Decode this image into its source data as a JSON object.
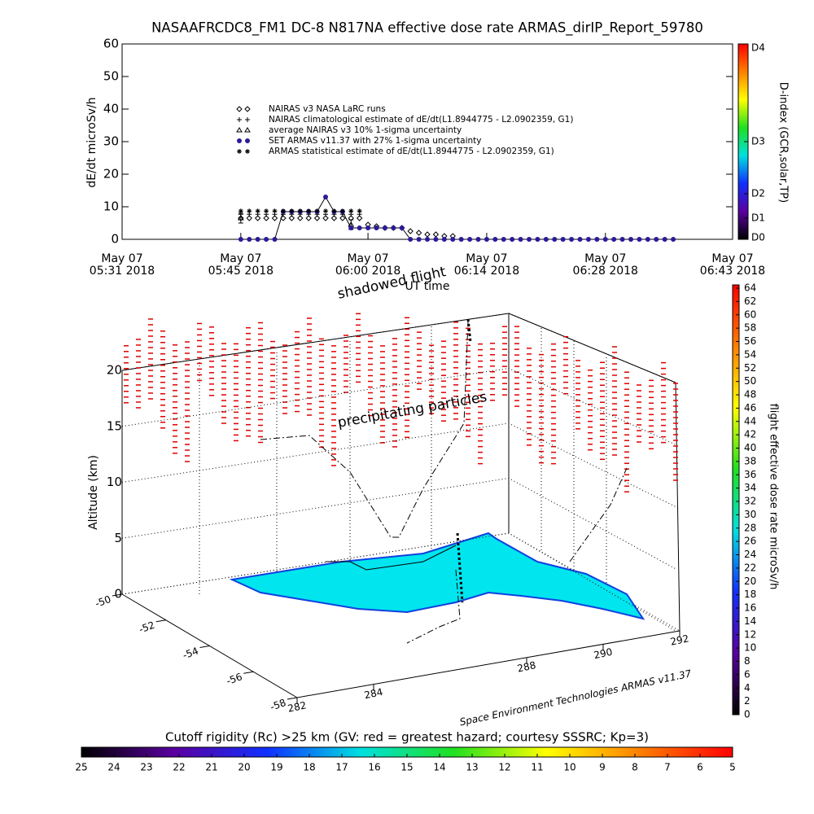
{
  "chart_data": [
    {
      "type": "line",
      "title": "NASAAFRCDC8_FM1 DC-8   N817NA effective dose rate ARMAS_dirIP_Report_59780",
      "ylabel": "dE/dt microSv/h",
      "xlabel": "UT time",
      "ylim": [
        0,
        60
      ],
      "yticks": [
        0,
        10,
        20,
        30,
        40,
        50,
        60
      ],
      "xlim": [
        "05:31",
        "06:43"
      ],
      "xticks": [
        {
          "value": "05:31",
          "label": [
            "May 07",
            "05:31 2018"
          ]
        },
        {
          "value": "05:45",
          "label": [
            "May 07",
            "05:45 2018"
          ]
        },
        {
          "value": "06:00",
          "label": [
            "May 07",
            "06:00 2018"
          ]
        },
        {
          "value": "06:14",
          "label": [
            "May 07",
            "06:14 2018"
          ]
        },
        {
          "value": "06:28",
          "label": [
            "May 07",
            "06:28 2018"
          ]
        },
        {
          "value": "06:43",
          "label": [
            "May 07",
            "06:43 2018"
          ]
        }
      ],
      "series": [
        {
          "name": "NAIRAS v3 NASA LaRC runs",
          "marker": "diamond",
          "color": "#000000",
          "x": [
            "05:45",
            "05:46",
            "05:47",
            "05:48",
            "05:49",
            "05:50",
            "05:51",
            "05:52",
            "05:53",
            "05:54",
            "05:55",
            "05:56",
            "05:57",
            "05:58",
            "05:59",
            "06:00",
            "06:01",
            "06:02",
            "06:03",
            "06:04",
            "06:05",
            "06:06",
            "06:07",
            "06:08",
            "06:09",
            "06:10"
          ],
          "values": [
            6.5,
            6.5,
            6.5,
            6.5,
            6.5,
            6.5,
            6.5,
            6.5,
            6.5,
            6.5,
            6.5,
            6.5,
            6.5,
            6.5,
            6.5,
            4.5,
            4,
            3.5,
            3.5,
            3.5,
            2.5,
            2,
            1.5,
            1.5,
            1,
            1
          ]
        },
        {
          "name": "NAIRAS climatological estimate of dE/dt(L1.8944775 - L2.0902359, G1)",
          "marker": "plus",
          "color": "#000000",
          "x": [
            "05:45",
            "05:46",
            "05:47",
            "05:48",
            "05:49",
            "05:50",
            "05:51",
            "05:52",
            "05:53",
            "05:54",
            "05:55",
            "05:56",
            "05:57",
            "05:58",
            "05:59"
          ],
          "values": [
            7.7,
            7.7,
            7.7,
            7.7,
            7.7,
            7.7,
            7.7,
            7.7,
            7.7,
            7.7,
            7.7,
            7.7,
            7.7,
            7.7,
            7.7
          ]
        },
        {
          "name": "average NAIRAS v3 10% 1-sigma uncertainty",
          "marker": "triangle",
          "color": "#000000",
          "x": [
            "05:45",
            "05:58"
          ],
          "values": [
            6.5,
            4.5
          ],
          "errors": [
            1.5,
            1.5
          ]
        },
        {
          "name": "SET ARMAS v11.37 with 27% 1-sigma uncertainty",
          "marker": "dot",
          "color": "#2a1a9a",
          "line": true,
          "x": [
            "05:45",
            "05:46",
            "05:47",
            "05:48",
            "05:49",
            "05:50",
            "05:51",
            "05:52",
            "05:53",
            "05:54",
            "05:55",
            "05:56",
            "05:57",
            "05:58",
            "05:59",
            "06:00",
            "06:01",
            "06:02",
            "06:03",
            "06:04",
            "06:05",
            "06:06",
            "06:07",
            "06:08",
            "06:09",
            "06:10",
            "06:11",
            "06:12",
            "06:13",
            "06:14",
            "06:15",
            "06:16",
            "06:17",
            "06:18",
            "06:19",
            "06:20",
            "06:21",
            "06:22",
            "06:23",
            "06:24",
            "06:25",
            "06:26",
            "06:27",
            "06:28",
            "06:29",
            "06:30",
            "06:31",
            "06:32",
            "06:33",
            "06:34",
            "06:35",
            "06:36"
          ],
          "values": [
            0,
            0,
            0,
            0,
            0,
            8.5,
            8.5,
            8.5,
            8.5,
            8.5,
            13,
            8.5,
            8.5,
            3.5,
            3.5,
            3.5,
            3.5,
            3.5,
            3.5,
            3.5,
            0,
            0,
            0,
            0,
            0,
            0,
            0,
            0,
            0,
            0,
            0,
            0,
            0,
            0,
            0,
            0,
            0,
            0,
            0,
            0,
            0,
            0,
            0,
            0,
            0,
            0,
            0,
            0,
            0,
            0,
            0,
            0
          ]
        },
        {
          "name": "ARMAS statistical estimate of dE/dt(L1.8944775 - L2.0902359, G1)",
          "marker": "star",
          "color": "#000000",
          "x": [
            "05:45",
            "05:46",
            "05:47",
            "05:48",
            "05:49",
            "05:50",
            "05:51",
            "05:52",
            "05:53",
            "05:54",
            "05:55",
            "05:56",
            "05:57",
            "05:58",
            "05:59"
          ],
          "values": [
            8.7,
            8.7,
            8.7,
            8.7,
            8.7,
            8.7,
            8.7,
            8.7,
            8.7,
            8.7,
            8.7,
            8.7,
            8.7,
            8.7,
            8.7
          ]
        }
      ]
    },
    {
      "type": "colorbar",
      "orientation": "vertical-d",
      "label": "D-index (GCR,solar,TP)",
      "colors": [
        "#000000",
        "#5a00a0",
        "#1030ff",
        "#00e0e0",
        "#20e020",
        "#ffff00",
        "#ff8000",
        "#ff0000"
      ],
      "ticks": [
        {
          "value": 0,
          "label": "D0"
        },
        {
          "value": 6.5,
          "label": "D1"
        },
        {
          "value": 14,
          "label": "D2"
        },
        {
          "value": 30,
          "label": "D3"
        },
        {
          "value": 60,
          "label": "D4"
        }
      ]
    },
    {
      "type": "surface3d",
      "zlabel": "Altitude (km)",
      "zlim": [
        0,
        20
      ],
      "zticks": [
        0,
        5,
        10,
        15,
        20
      ],
      "ylim": [
        -50,
        -58
      ],
      "yticks": [
        -50,
        -52,
        -54,
        -56,
        -58
      ],
      "xlim": [
        282,
        292
      ],
      "xticks": [
        282,
        284,
        288,
        290,
        292
      ],
      "annotations": [
        "shadowed flight",
        "precipitating particles"
      ],
      "credit": "Space Environment Technologies ARMAS v11.37"
    },
    {
      "type": "colorbar",
      "orientation": "vertical",
      "label": "flight effective dose rate microSv/h",
      "colors": [
        "#000000",
        "#5a00a0",
        "#1030ff",
        "#00e0e0",
        "#20e020",
        "#ffff00",
        "#ff8000",
        "#ff0000"
      ],
      "lim": [
        0,
        64
      ],
      "ticks": [
        0,
        2,
        4,
        6,
        8,
        10,
        12,
        14,
        16,
        18,
        20,
        22,
        24,
        26,
        28,
        30,
        32,
        34,
        36,
        38,
        40,
        42,
        44,
        46,
        48,
        50,
        52,
        54,
        56,
        58,
        60,
        62,
        64
      ]
    },
    {
      "type": "colorbar",
      "orientation": "horizontal",
      "title": "Cutoff rigidity (Rc) >25 km (GV: red = greatest hazard; courtesy SSSRC; Kp=3)",
      "colors": [
        "#000000",
        "#5a00a0",
        "#1030ff",
        "#00e0e0",
        "#20e020",
        "#ffff00",
        "#ff8000",
        "#ff0000"
      ],
      "lim": [
        25,
        5
      ],
      "ticks": [
        25,
        24,
        23,
        22,
        21,
        20,
        19,
        18,
        17,
        16,
        15,
        14,
        13,
        12,
        11,
        10,
        9,
        8,
        7,
        6,
        5
      ]
    }
  ]
}
